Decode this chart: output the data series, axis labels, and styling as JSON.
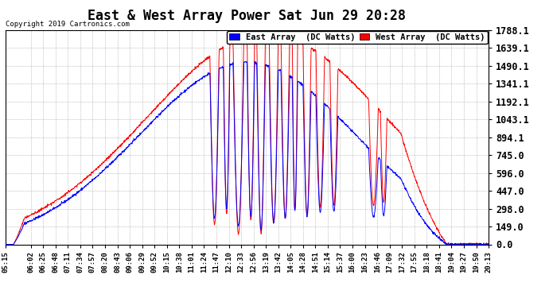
{
  "title": "East & West Array Power Sat Jun 29 20:28",
  "copyright": "Copyright 2019 Cartronics.com",
  "legend_east": "East Array  (DC Watts)",
  "legend_west": "West Array  (DC Watts)",
  "east_color": "#0000ff",
  "west_color": "#ff0000",
  "background_color": "#ffffff",
  "grid_color": "#888888",
  "yticks": [
    0.0,
    149.0,
    298.0,
    447.0,
    596.0,
    745.0,
    894.1,
    1043.1,
    1192.1,
    1341.1,
    1490.1,
    1639.1,
    1788.1
  ],
  "ymax": 1788.1,
  "ymin": 0.0,
  "xlabel_fontsize": 6.5,
  "ylabel_fontsize": 8.5,
  "title_fontsize": 12,
  "legend_fontsize": 7.5,
  "tick_labels": [
    "05:15",
    "06:02",
    "06:25",
    "06:48",
    "07:11",
    "07:34",
    "07:57",
    "08:20",
    "08:43",
    "09:06",
    "09:29",
    "09:52",
    "10:15",
    "10:38",
    "11:01",
    "11:24",
    "11:47",
    "12:10",
    "12:33",
    "12:56",
    "13:19",
    "13:42",
    "14:05",
    "14:28",
    "14:51",
    "15:14",
    "15:37",
    "16:00",
    "16:23",
    "16:46",
    "17:09",
    "17:32",
    "17:55",
    "18:18",
    "18:41",
    "19:04",
    "19:27",
    "19:50",
    "20:13"
  ]
}
